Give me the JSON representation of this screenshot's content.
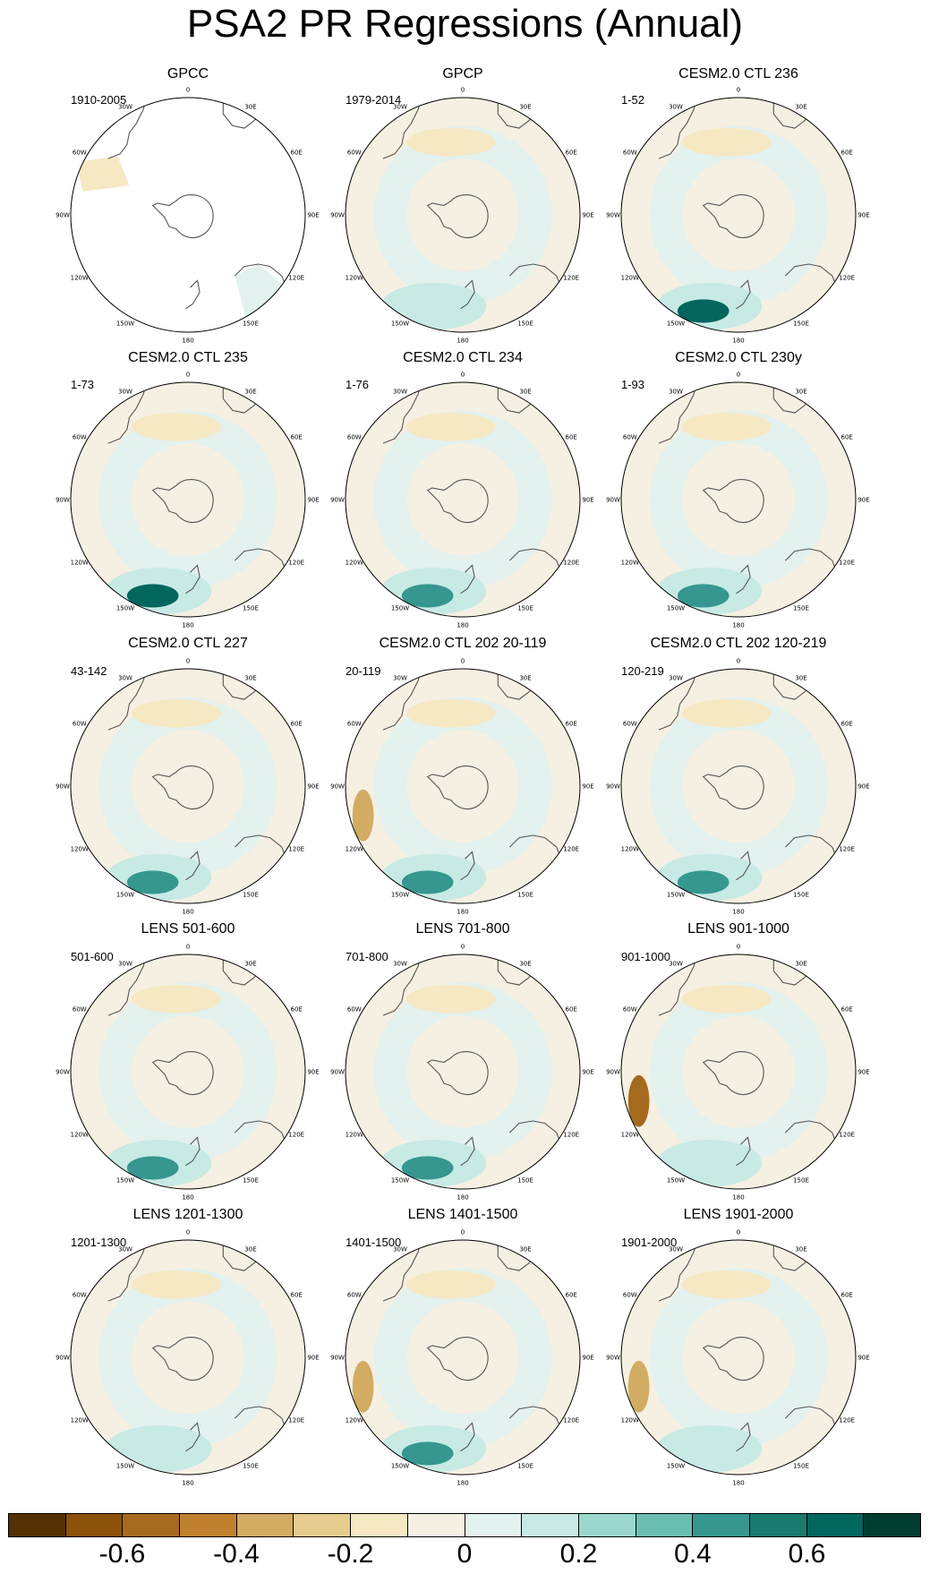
{
  "title": "PSA2 PR Regressions (Annual)",
  "longitude_labels": [
    "0",
    "30E",
    "60E",
    "90E",
    "120E",
    "150E",
    "180",
    "150W",
    "120W",
    "90W",
    "60W",
    "30W"
  ],
  "panels": [
    {
      "title": "GPCC",
      "years": "1910-2005",
      "extreme_shading": {
        "negative": "weak",
        "positive": "weak"
      }
    },
    {
      "title": "GPCP",
      "years": "1979-2014",
      "extreme_shading": {
        "negative": "weak",
        "positive": "weak"
      }
    },
    {
      "title": "CESM2.0 CTL 236",
      "years": "1-52",
      "extreme_shading": {
        "negative": "weak",
        "positive": "strong"
      }
    },
    {
      "title": "CESM2.0 CTL 235",
      "years": "1-73",
      "extreme_shading": {
        "negative": "weak",
        "positive": "strong"
      }
    },
    {
      "title": "CESM2.0 CTL 234",
      "years": "1-76",
      "extreme_shading": {
        "negative": "weak",
        "positive": "moderate"
      }
    },
    {
      "title": "CESM2.0 CTL 230y",
      "years": "1-93",
      "extreme_shading": {
        "negative": "weak",
        "positive": "moderate"
      }
    },
    {
      "title": "CESM2.0 CTL 227",
      "years": "43-142",
      "extreme_shading": {
        "negative": "weak",
        "positive": "moderate"
      }
    },
    {
      "title": "CESM2.0 CTL 202 20-119",
      "years": "20-119",
      "extreme_shading": {
        "negative": "moderate",
        "positive": "moderate"
      }
    },
    {
      "title": "CESM2.0 CTL 202 120-219",
      "years": "120-219",
      "extreme_shading": {
        "negative": "weak",
        "positive": "moderate"
      }
    },
    {
      "title": "LENS 501-600",
      "years": "501-600",
      "extreme_shading": {
        "negative": "weak",
        "positive": "moderate"
      }
    },
    {
      "title": "LENS 701-800",
      "years": "701-800",
      "extreme_shading": {
        "negative": "weak",
        "positive": "moderate"
      }
    },
    {
      "title": "LENS 901-1000",
      "years": "901-1000",
      "extreme_shading": {
        "negative": "strong",
        "positive": "weak"
      }
    },
    {
      "title": "LENS 1201-1300",
      "years": "1201-1300",
      "extreme_shading": {
        "negative": "weak",
        "positive": "weak"
      }
    },
    {
      "title": "LENS 1401-1500",
      "years": "1401-1500",
      "extreme_shading": {
        "negative": "moderate",
        "positive": "moderate"
      }
    },
    {
      "title": "LENS 1901-2000",
      "years": "1901-2000",
      "extreme_shading": {
        "negative": "moderate",
        "positive": "weak"
      }
    }
  ],
  "colorbar": {
    "colors": [
      "#543005",
      "#8c510a",
      "#a66a1e",
      "#bf812d",
      "#d2ac63",
      "#e6cd8f",
      "#f6e8c3",
      "#f5f0e2",
      "#e3f1ef",
      "#c7eae5",
      "#9ad8cd",
      "#6bbfb2",
      "#35978f",
      "#1a7a70",
      "#01665e",
      "#003c30"
    ],
    "tick_labels": [
      "-0.6",
      "-0.4",
      "-0.2",
      "0",
      "0.2",
      "0.4",
      "0.6"
    ],
    "tick_values": [
      -0.6,
      -0.4,
      -0.2,
      0,
      0.2,
      0.4,
      0.6
    ],
    "range": [
      -0.8,
      0.8
    ]
  },
  "colors": {
    "background_field": "#f5f0e2",
    "light_positive": "#e3f1ef",
    "light_negative": "#f6e8c3",
    "coastline": "#555555",
    "map_outline": "#000000"
  }
}
